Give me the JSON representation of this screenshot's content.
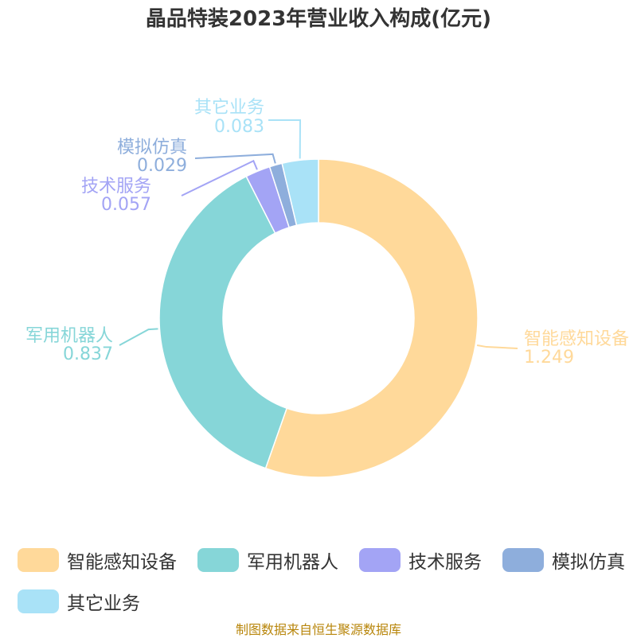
{
  "chart_data": {
    "type": "pie",
    "variant": "donut",
    "title": "晶品特装2023年营业收入构成(亿元)",
    "unit": "亿元",
    "slices": [
      {
        "name": "智能感知设备",
        "value": 1.249,
        "value_label": "1.249",
        "color": "#ffd99a"
      },
      {
        "name": "军用机器人",
        "value": 0.837,
        "value_label": "0.837",
        "color": "#86d6d8"
      },
      {
        "name": "技术服务",
        "value": 0.057,
        "value_label": "0.057",
        "color": "#a3a4f5"
      },
      {
        "name": "模拟仿真",
        "value": 0.029,
        "value_label": "0.029",
        "color": "#8eaedc"
      },
      {
        "name": "其它业务",
        "value": 0.083,
        "value_label": "0.083",
        "color": "#a9e2f7"
      }
    ],
    "legend_position": "bottom",
    "source": "制图数据来自恒生聚源数据库"
  }
}
